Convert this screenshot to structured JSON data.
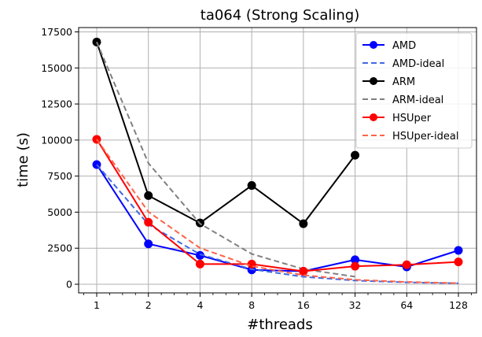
{
  "chart_data": {
    "type": "line",
    "title": "ta064 (Strong Scaling)",
    "xlabel": "#threads",
    "ylabel": "time (s)",
    "x_scale": "log2",
    "x": [
      1,
      2,
      4,
      8,
      16,
      32,
      64,
      128
    ],
    "x_tick_labels": [
      "1",
      "2",
      "4",
      "8",
      "16",
      "32",
      "64",
      "128"
    ],
    "ylim": [
      -600,
      17800
    ],
    "y_ticks": [
      0,
      2500,
      5000,
      7500,
      10000,
      12500,
      15000,
      17500
    ],
    "y_tick_labels": [
      "0",
      "2500",
      "5000",
      "7500",
      "10000",
      "12500",
      "15000",
      "17500"
    ],
    "grid": true,
    "legend_position": "upper right",
    "series": [
      {
        "name": "AMD",
        "style": "solid",
        "marker": true,
        "color": "#0000ff",
        "x": [
          1,
          2,
          4,
          8,
          16,
          32,
          64,
          128
        ],
        "values": [
          8300,
          2800,
          2000,
          1000,
          900,
          1700,
          1200,
          2350
        ]
      },
      {
        "name": "AMD-ideal",
        "style": "dashed",
        "marker": false,
        "color": "#4169e1",
        "x": [
          1,
          2,
          4,
          8,
          16,
          32,
          64,
          128
        ],
        "values": [
          8300,
          4150,
          2075,
          1037.5,
          518.75,
          259.4,
          129.7,
          64.8
        ]
      },
      {
        "name": "ARM",
        "style": "solid",
        "marker": true,
        "color": "#000000",
        "x": [
          1,
          2,
          4,
          8,
          16,
          32
        ],
        "values": [
          16800,
          6150,
          4250,
          6850,
          4200,
          8950
        ]
      },
      {
        "name": "ARM-ideal",
        "style": "dashed",
        "marker": false,
        "color": "#808080",
        "x": [
          1,
          2,
          4,
          8,
          16,
          32
        ],
        "values": [
          16800,
          8400,
          4200,
          2100,
          1050,
          525
        ]
      },
      {
        "name": "HSUper",
        "style": "solid",
        "marker": true,
        "color": "#ff0000",
        "x": [
          1,
          2,
          4,
          8,
          16,
          32,
          64,
          128
        ],
        "values": [
          10050,
          4300,
          1400,
          1400,
          900,
          1250,
          1350,
          1550
        ]
      },
      {
        "name": "HSUper-ideal",
        "style": "dashed",
        "marker": false,
        "color": "#ff6347",
        "x": [
          1,
          2,
          4,
          8,
          16,
          32,
          64,
          128
        ],
        "values": [
          10050,
          5025,
          2512.5,
          1256.25,
          628.1,
          314.1,
          157,
          78.5
        ]
      }
    ]
  }
}
